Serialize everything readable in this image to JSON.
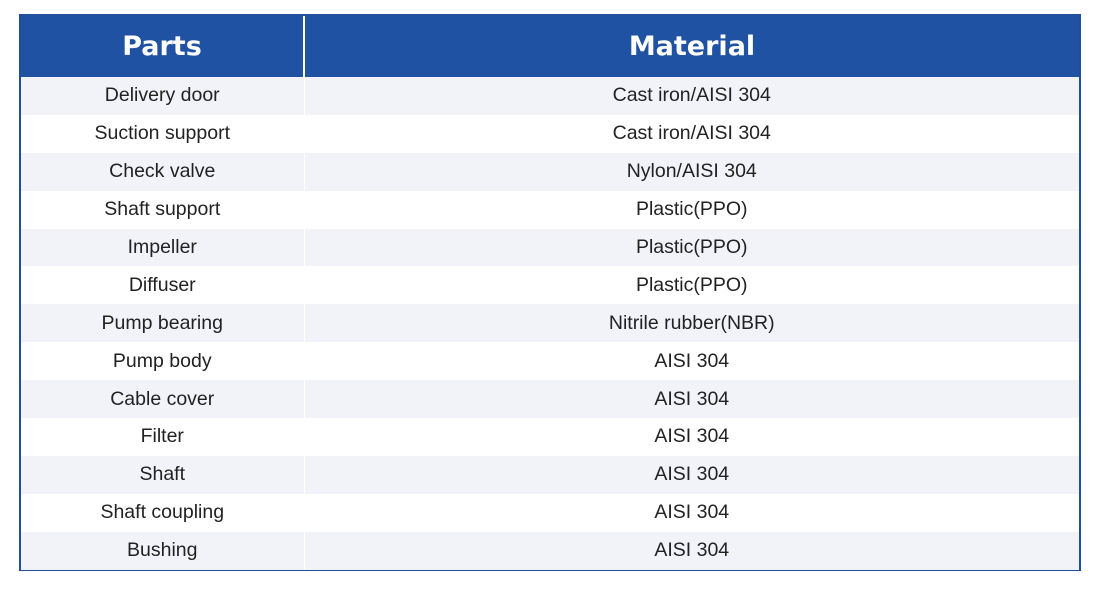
{
  "table": {
    "headers": {
      "parts": "Parts",
      "material": "Material"
    },
    "rows": [
      {
        "part": "Delivery door",
        "material": "Cast iron/AISI 304"
      },
      {
        "part": "Suction support",
        "material": "Cast iron/AISI 304"
      },
      {
        "part": "Check valve",
        "material": "Nylon/AISI 304"
      },
      {
        "part": "Shaft support",
        "material": "Plastic(PPO)"
      },
      {
        "part": "Impeller",
        "material": "Plastic(PPO)"
      },
      {
        "part": "Diffuser",
        "material": "Plastic(PPO)"
      },
      {
        "part": "Pump bearing",
        "material": "Nitrile rubber(NBR)"
      },
      {
        "part": "Pump body",
        "material": "AISI 304"
      },
      {
        "part": "Cable cover",
        "material": "AISI 304"
      },
      {
        "part": "Filter",
        "material": "AISI 304"
      },
      {
        "part": "Shaft",
        "material": "AISI 304"
      },
      {
        "part": "Shaft coupling",
        "material": "AISI 304"
      },
      {
        "part": "Bushing",
        "material": "AISI 304"
      }
    ]
  },
  "colors": {
    "header_bg": "#1f52a3",
    "border": "#1f4f9c",
    "stripe": "#f1f3f8"
  }
}
